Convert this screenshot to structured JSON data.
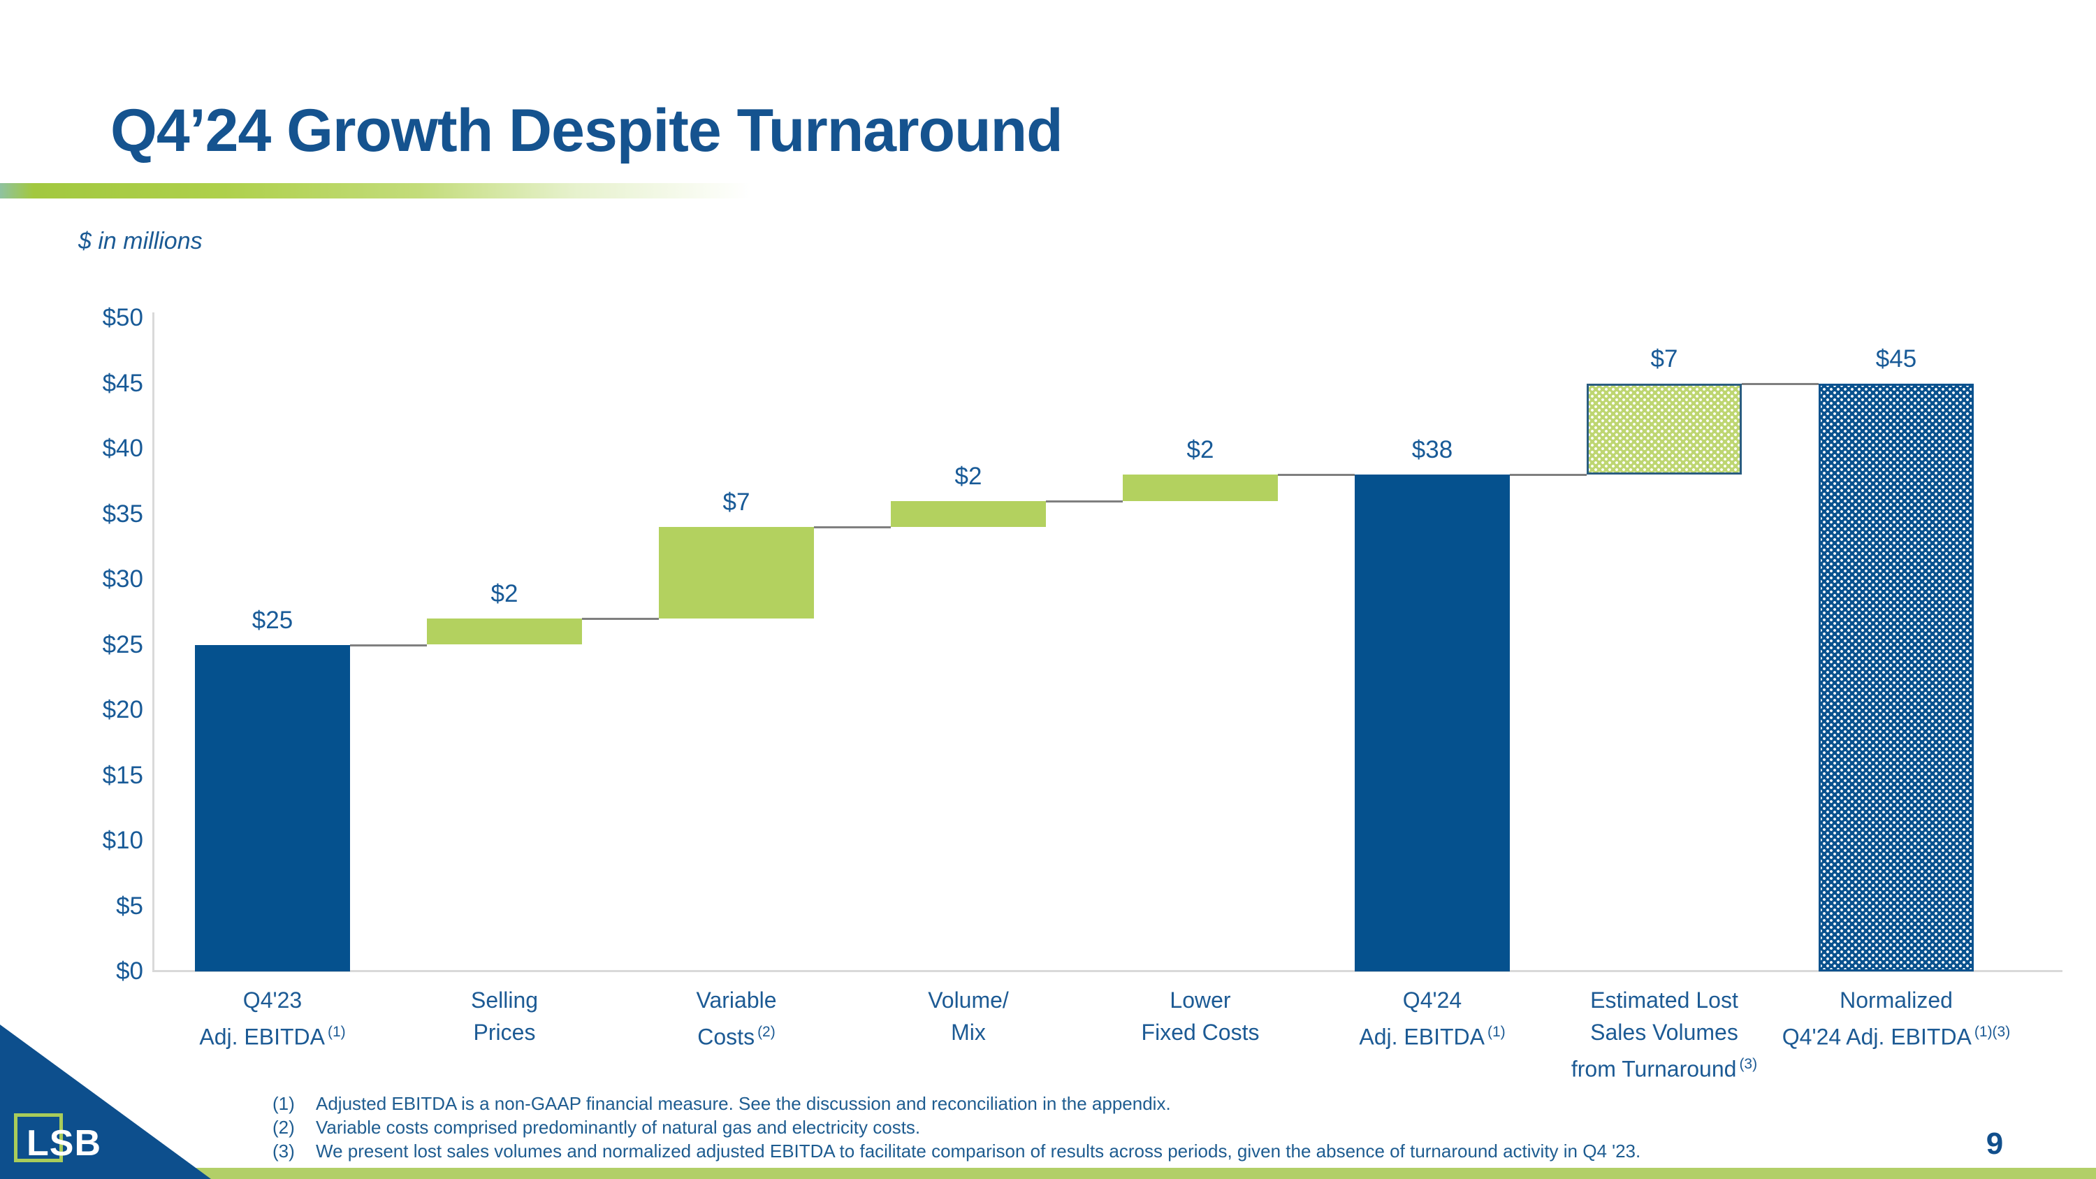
{
  "header": {
    "title": "Q4’24 Growth Despite Turnaround"
  },
  "units_note": "$ in millions",
  "chart_data": {
    "type": "bar",
    "subtype": "waterfall",
    "title": "Q4'24 Growth Despite Turnaround",
    "units": "$ in millions",
    "ylim": [
      0,
      50
    ],
    "ytick_step": 5,
    "yticks": [
      "$0",
      "$5",
      "$10",
      "$15",
      "$20",
      "$25",
      "$30",
      "$35",
      "$40",
      "$45",
      "$50"
    ],
    "grid": false,
    "legend": "none",
    "bars": [
      {
        "label_lines": [
          "Q4'23",
          "Adj. EBITDA"
        ],
        "sup": "(1)",
        "start": 0,
        "end": 25,
        "value_label": "$25",
        "style": "solid-blue"
      },
      {
        "label_lines": [
          "Selling",
          "Prices"
        ],
        "sup": "",
        "start": 25,
        "end": 27,
        "value_label": "$2",
        "style": "solid-green"
      },
      {
        "label_lines": [
          "Variable",
          "Costs"
        ],
        "sup": "(2)",
        "start": 27,
        "end": 34,
        "value_label": "$7",
        "style": "solid-green"
      },
      {
        "label_lines": [
          "Volume/",
          "Mix"
        ],
        "sup": "",
        "start": 34,
        "end": 36,
        "value_label": "$2",
        "style": "solid-green"
      },
      {
        "label_lines": [
          "Lower",
          "Fixed Costs"
        ],
        "sup": "",
        "start": 36,
        "end": 38,
        "value_label": "$2",
        "style": "solid-green"
      },
      {
        "label_lines": [
          "Q4'24",
          "Adj. EBITDA"
        ],
        "sup": "(1)",
        "start": 0,
        "end": 38,
        "value_label": "$38",
        "style": "solid-blue"
      },
      {
        "label_lines": [
          "Estimated Lost",
          "Sales Volumes",
          "from Turnaround"
        ],
        "sup": "(3)",
        "start": 38,
        "end": 45,
        "value_label": "$7",
        "style": "hatch-green"
      },
      {
        "label_lines": [
          "Normalized",
          "Q4'24 Adj. EBITDA"
        ],
        "sup": "(1)(3)",
        "start": 0,
        "end": 45,
        "value_label": "$45",
        "style": "hatch-blue"
      }
    ],
    "colors": {
      "solid_blue": "#05518e",
      "solid_green": "#b3d15f",
      "hatch_green_base": "#bed672",
      "hatch_blue_base": "#0a528e",
      "hatch_border": "#2a5d80",
      "connector": "#7f7f7f",
      "axis": "#d9d9d9",
      "label_text": "#185a97",
      "title_text": "#15538f"
    }
  },
  "footnotes": [
    {
      "num": "(1)",
      "text": "Adjusted EBITDA is a non-GAAP financial measure.  See the discussion and reconciliation in the appendix."
    },
    {
      "num": "(2)",
      "text": "Variable costs comprised predominantly of natural gas and electricity costs."
    },
    {
      "num": "(3)",
      "text": "We present lost sales volumes and normalized adjusted EBITDA to facilitate comparison of results across periods, given the absence of turnaround activity in Q4 '23."
    }
  ],
  "footer": {
    "page_number": "9",
    "logo_text": "LSB"
  }
}
